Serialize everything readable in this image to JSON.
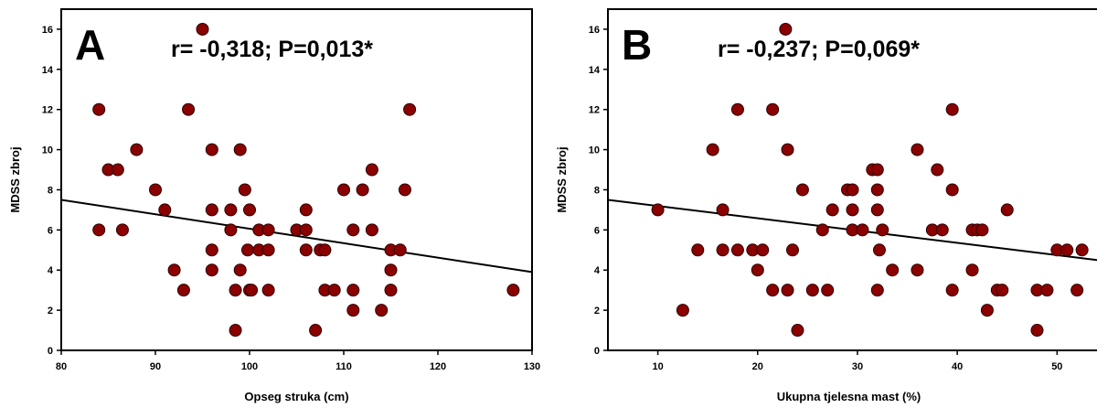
{
  "chart_data": [
    {
      "type": "scatter",
      "panel_label": "A",
      "annotation": "r= -0,318; P=0,013*",
      "xlabel": "Opseg struka (cm)",
      "ylabel": "MDSS zbroj",
      "xlim": [
        80,
        130
      ],
      "ylim": [
        0,
        17
      ],
      "xticks": [
        80,
        90,
        100,
        110,
        120,
        130
      ],
      "yticks": [
        0,
        2,
        4,
        6,
        8,
        10,
        12,
        14,
        16
      ],
      "marker_color": "#8b0000",
      "line_color": "#000000",
      "trendline": {
        "x": [
          80,
          130
        ],
        "y": [
          7.5,
          3.9
        ]
      },
      "points": [
        [
          84,
          12
        ],
        [
          84,
          6
        ],
        [
          85,
          9
        ],
        [
          86,
          9
        ],
        [
          86.5,
          6
        ],
        [
          88,
          10
        ],
        [
          90,
          8
        ],
        [
          91,
          7
        ],
        [
          92,
          4
        ],
        [
          93,
          3
        ],
        [
          93.5,
          12
        ],
        [
          95,
          16
        ],
        [
          96,
          10
        ],
        [
          96,
          7
        ],
        [
          96,
          5
        ],
        [
          96,
          4
        ],
        [
          98,
          7
        ],
        [
          98,
          6
        ],
        [
          98.5,
          3
        ],
        [
          98.5,
          1
        ],
        [
          99,
          10
        ],
        [
          99,
          4
        ],
        [
          99.5,
          8
        ],
        [
          100,
          7
        ],
        [
          100,
          3
        ],
        [
          99.8,
          5
        ],
        [
          100.2,
          3
        ],
        [
          101,
          6
        ],
        [
          101,
          5
        ],
        [
          102,
          6
        ],
        [
          102,
          5
        ],
        [
          102,
          3
        ],
        [
          105,
          6
        ],
        [
          106,
          7
        ],
        [
          106,
          6
        ],
        [
          106,
          5
        ],
        [
          107,
          1
        ],
        [
          107.5,
          5
        ],
        [
          108,
          5
        ],
        [
          108,
          3
        ],
        [
          109,
          3
        ],
        [
          110,
          8
        ],
        [
          111,
          6
        ],
        [
          111,
          3
        ],
        [
          111,
          2
        ],
        [
          112,
          8
        ],
        [
          113,
          9
        ],
        [
          113,
          6
        ],
        [
          114,
          2
        ],
        [
          115,
          5
        ],
        [
          115,
          4
        ],
        [
          115,
          3
        ],
        [
          116,
          5
        ],
        [
          116.5,
          8
        ],
        [
          117,
          12
        ],
        [
          128,
          3
        ]
      ]
    },
    {
      "type": "scatter",
      "panel_label": "B",
      "annotation": "r= -0,237; P=0,069*",
      "xlabel": "Ukupna tjelesna mast (%)",
      "ylabel": "MDSS zbroj",
      "xlim": [
        5,
        54
      ],
      "ylim": [
        0,
        17
      ],
      "xticks": [
        10,
        20,
        30,
        40,
        50
      ],
      "yticks": [
        0,
        2,
        4,
        6,
        8,
        10,
        12,
        14,
        16
      ],
      "marker_color": "#8b0000",
      "line_color": "#000000",
      "trendline": {
        "x": [
          5,
          54
        ],
        "y": [
          7.5,
          4.5
        ]
      },
      "points": [
        [
          10,
          7
        ],
        [
          12.5,
          2
        ],
        [
          14,
          5
        ],
        [
          15.5,
          10
        ],
        [
          16.5,
          7
        ],
        [
          16.5,
          5
        ],
        [
          18,
          12
        ],
        [
          18,
          5
        ],
        [
          19.5,
          5
        ],
        [
          20,
          4
        ],
        [
          20.5,
          5
        ],
        [
          21.5,
          12
        ],
        [
          21.5,
          3
        ],
        [
          22.8,
          16
        ],
        [
          23,
          10
        ],
        [
          23,
          3
        ],
        [
          23.5,
          5
        ],
        [
          24,
          1
        ],
        [
          24.5,
          8
        ],
        [
          25.5,
          3
        ],
        [
          26.5,
          6
        ],
        [
          27,
          3
        ],
        [
          27.5,
          7
        ],
        [
          29,
          8
        ],
        [
          29.5,
          8
        ],
        [
          29.5,
          7
        ],
        [
          29.5,
          6
        ],
        [
          30.5,
          6
        ],
        [
          31.5,
          9
        ],
        [
          32,
          9
        ],
        [
          32,
          8
        ],
        [
          32,
          7
        ],
        [
          32,
          3
        ],
        [
          32.2,
          5
        ],
        [
          32.5,
          6
        ],
        [
          33.5,
          4
        ],
        [
          36,
          10
        ],
        [
          36,
          4
        ],
        [
          37.5,
          6
        ],
        [
          38,
          9
        ],
        [
          38.5,
          6
        ],
        [
          39.5,
          12
        ],
        [
          39.5,
          8
        ],
        [
          39.5,
          3
        ],
        [
          41.5,
          6
        ],
        [
          41.5,
          4
        ],
        [
          42,
          6
        ],
        [
          42.5,
          6
        ],
        [
          43,
          2
        ],
        [
          44,
          3
        ],
        [
          44.5,
          3
        ],
        [
          45,
          7
        ],
        [
          48,
          3
        ],
        [
          48,
          1
        ],
        [
          49,
          3
        ],
        [
          50,
          5
        ],
        [
          51,
          5
        ],
        [
          52,
          3
        ],
        [
          52.5,
          5
        ]
      ]
    }
  ]
}
